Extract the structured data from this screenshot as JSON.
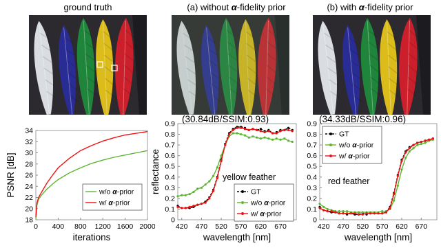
{
  "figure": {
    "titles": {
      "gt": "ground truth",
      "a_prefix": "(a) without ",
      "b_prefix": "(b) with ",
      "alpha": "α",
      "suffix": "-fidelity prior"
    },
    "psnr_a": "(30.84dB/SSIM:0.93)",
    "psnr_b": "(34.33dB/SSIM:0.96)",
    "colors": {
      "gt": "#000000",
      "wo": "#5cb531",
      "w": "#ee1111",
      "background": "#2c2a2e"
    },
    "feather_colors": [
      "#e3e7ec",
      "#2a2c9c",
      "#1f8a3c",
      "#e5c419",
      "#d4202b"
    ]
  },
  "chart_data": [
    {
      "type": "line",
      "title": "",
      "xlabel": "iterations",
      "ylabel": "PSNR [dB]",
      "xlim": [
        0,
        2000
      ],
      "ylim": [
        18,
        34
      ],
      "xticks": [
        0,
        400,
        800,
        1200,
        1600,
        2000
      ],
      "yticks": [
        18,
        20,
        22,
        24,
        26,
        28,
        30,
        32,
        34
      ],
      "legend_position": "bottom-right",
      "grid": false,
      "x": [
        0,
        20,
        50,
        100,
        200,
        300,
        400,
        600,
        800,
        1000,
        1200,
        1400,
        1600,
        1800,
        2000
      ],
      "series": [
        {
          "name": "w/o",
          "name_alpha": "α",
          "name_suffix": "-prior",
          "values": [
            18.2,
            20.6,
            21.7,
            22.4,
            23.5,
            24.4,
            25.2,
            26.4,
            27.3,
            28.1,
            28.7,
            29.2,
            29.6,
            30.0,
            30.4
          ]
        },
        {
          "name": "w/",
          "name_alpha": "α",
          "name_suffix": "-prior",
          "values": [
            18.5,
            21.0,
            22.0,
            22.9,
            24.6,
            26.0,
            27.3,
            29.0,
            30.4,
            31.3,
            32.1,
            32.7,
            33.2,
            33.5,
            33.8
          ]
        }
      ]
    },
    {
      "type": "line",
      "title": "",
      "annotation": "yellow feather",
      "xlabel": "wavelength [nm]",
      "ylabel": "reflectance",
      "xlim": [
        410,
        710
      ],
      "ylim": [
        0,
        0.9
      ],
      "xticks": [
        420,
        470,
        520,
        570,
        620,
        670
      ],
      "yticks": [
        0,
        0.1,
        0.2,
        0.3,
        0.4,
        0.5,
        0.6,
        0.7,
        0.8,
        0.9
      ],
      "legend_position": "bottom-right",
      "grid": false,
      "x": [
        410,
        420,
        430,
        440,
        450,
        460,
        470,
        480,
        490,
        500,
        510,
        520,
        530,
        540,
        550,
        560,
        570,
        580,
        590,
        600,
        610,
        620,
        630,
        640,
        650,
        660,
        670,
        680,
        690,
        700
      ],
      "series": [
        {
          "name": "GT",
          "values": [
            0.13,
            0.11,
            0.11,
            0.11,
            0.12,
            0.14,
            0.15,
            0.17,
            0.21,
            0.28,
            0.4,
            0.56,
            0.71,
            0.81,
            0.85,
            0.87,
            0.87,
            0.86,
            0.84,
            0.85,
            0.84,
            0.85,
            0.83,
            0.84,
            0.81,
            0.82,
            0.84,
            0.84,
            0.86,
            0.84
          ]
        },
        {
          "name": "w/o",
          "name_alpha": "α",
          "name_suffix": "-prior",
          "values": [
            0.22,
            0.23,
            0.23,
            0.24,
            0.26,
            0.29,
            0.3,
            0.33,
            0.36,
            0.41,
            0.49,
            0.6,
            0.7,
            0.78,
            0.81,
            0.81,
            0.8,
            0.79,
            0.77,
            0.78,
            0.77,
            0.76,
            0.77,
            0.76,
            0.75,
            0.76,
            0.75,
            0.76,
            0.74,
            0.73
          ]
        },
        {
          "name": "w/",
          "name_alpha": "α",
          "name_suffix": "-prior",
          "values": [
            0.12,
            0.11,
            0.11,
            0.12,
            0.13,
            0.14,
            0.15,
            0.16,
            0.2,
            0.27,
            0.39,
            0.55,
            0.7,
            0.8,
            0.84,
            0.86,
            0.86,
            0.85,
            0.84,
            0.85,
            0.84,
            0.83,
            0.82,
            0.83,
            0.81,
            0.81,
            0.83,
            0.84,
            0.84,
            0.83
          ]
        }
      ]
    },
    {
      "type": "line",
      "title": "",
      "annotation": "red feather",
      "xlabel": "wavelength [nm]",
      "ylabel": "",
      "xlim": [
        410,
        710
      ],
      "ylim": [
        0,
        0.9
      ],
      "xticks": [
        420,
        470,
        520,
        570,
        620,
        670
      ],
      "yticks": [
        0,
        0.1,
        0.2,
        0.3,
        0.4,
        0.5,
        0.6,
        0.7,
        0.8,
        0.9
      ],
      "legend_position": "top-left",
      "grid": false,
      "x": [
        410,
        420,
        430,
        440,
        450,
        460,
        470,
        480,
        490,
        500,
        510,
        520,
        530,
        540,
        550,
        560,
        570,
        580,
        590,
        600,
        610,
        620,
        630,
        640,
        650,
        660,
        670,
        680,
        690,
        700
      ],
      "series": [
        {
          "name": "GT",
          "values": [
            0.12,
            0.09,
            0.08,
            0.07,
            0.07,
            0.06,
            0.06,
            0.05,
            0.06,
            0.05,
            0.05,
            0.06,
            0.05,
            0.06,
            0.06,
            0.06,
            0.06,
            0.07,
            0.12,
            0.25,
            0.42,
            0.56,
            0.64,
            0.68,
            0.7,
            0.72,
            0.73,
            0.74,
            0.75,
            0.76
          ]
        },
        {
          "name": "w/o",
          "name_alpha": "α",
          "name_suffix": "-prior",
          "values": [
            0.15,
            0.12,
            0.1,
            0.09,
            0.08,
            0.08,
            0.08,
            0.08,
            0.07,
            0.07,
            0.07,
            0.07,
            0.07,
            0.07,
            0.07,
            0.07,
            0.08,
            0.08,
            0.1,
            0.18,
            0.32,
            0.47,
            0.58,
            0.64,
            0.67,
            0.7,
            0.71,
            0.72,
            0.74,
            0.75
          ]
        },
        {
          "name": "w/",
          "name_alpha": "α",
          "name_suffix": "-prior",
          "values": [
            0.11,
            0.09,
            0.08,
            0.08,
            0.07,
            0.06,
            0.06,
            0.06,
            0.06,
            0.06,
            0.05,
            0.05,
            0.06,
            0.06,
            0.06,
            0.06,
            0.06,
            0.07,
            0.11,
            0.24,
            0.41,
            0.55,
            0.63,
            0.67,
            0.7,
            0.72,
            0.73,
            0.74,
            0.75,
            0.76
          ]
        }
      ]
    }
  ]
}
